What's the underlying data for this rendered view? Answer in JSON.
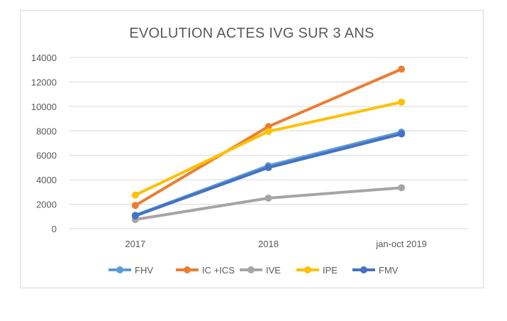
{
  "chart_data": {
    "type": "line",
    "title": "EVOLUTION ACTES IVG SUR 3 ANS",
    "xlabel": "",
    "ylabel": "",
    "categories": [
      "2017",
      "2018",
      "jan-oct 2019"
    ],
    "ylim": [
      0,
      14000
    ],
    "yticks": [
      0,
      2000,
      4000,
      6000,
      8000,
      10000,
      12000,
      14000
    ],
    "grid": true,
    "legend_position": "bottom",
    "series": [
      {
        "name": "FHV",
        "values": [
          1100,
          5150,
          7900
        ],
        "color": "#5B9BD5"
      },
      {
        "name": "IC +ICS",
        "values": [
          1900,
          8350,
          13050
        ],
        "color": "#ED7D31"
      },
      {
        "name": "IVE",
        "values": [
          750,
          2500,
          3350
        ],
        "color": "#A5A5A5"
      },
      {
        "name": "IPE",
        "values": [
          2750,
          7950,
          10350
        ],
        "color": "#FFC000"
      },
      {
        "name": "FMV",
        "values": [
          1050,
          5000,
          7750
        ],
        "color": "#4472C4"
      }
    ]
  }
}
